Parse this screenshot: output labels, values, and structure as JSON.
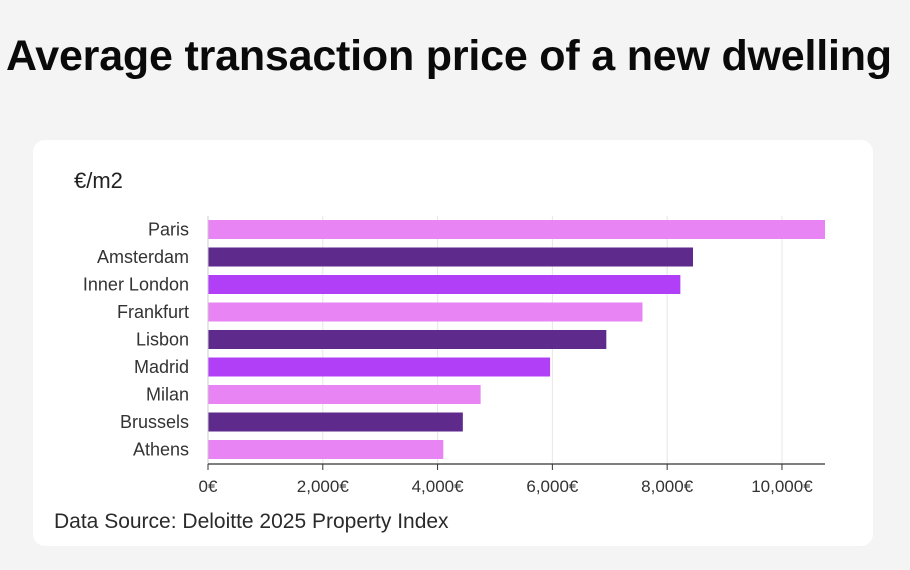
{
  "title": "Average transaction price of a new dwelling",
  "unit_label": "€/m2",
  "source": "Data Source: Deloitte 2025 Property Index",
  "colors": {
    "light": "#e884f3",
    "dark": "#5e2a8c",
    "mid": "#b13ff7",
    "grid": "#e6e6e6",
    "axis": "#333333"
  },
  "chart_data": {
    "type": "bar",
    "orientation": "horizontal",
    "categories": [
      "Paris",
      "Amsterdam",
      "Inner London",
      "Frankfurt",
      "Lisbon",
      "Madrid",
      "Milan",
      "Brussels",
      "Athens"
    ],
    "values": [
      10750,
      8450,
      8230,
      7570,
      6940,
      5960,
      4750,
      4440,
      4100
    ],
    "bar_colors": [
      "#e884f3",
      "#5e2a8c",
      "#b13ff7",
      "#e884f3",
      "#5e2a8c",
      "#b13ff7",
      "#e884f3",
      "#5e2a8c",
      "#e884f3"
    ],
    "xlim": [
      0,
      10750
    ],
    "xticks": [
      0,
      2000,
      4000,
      6000,
      8000,
      10000
    ],
    "xtick_labels": [
      "0€",
      "2,000€",
      "4,000€",
      "6,000€",
      "8,000€",
      "10,000€"
    ],
    "title": "Average transaction price of a new dwelling",
    "ylabel": "€/m2",
    "xlabel": "",
    "grid": true
  }
}
